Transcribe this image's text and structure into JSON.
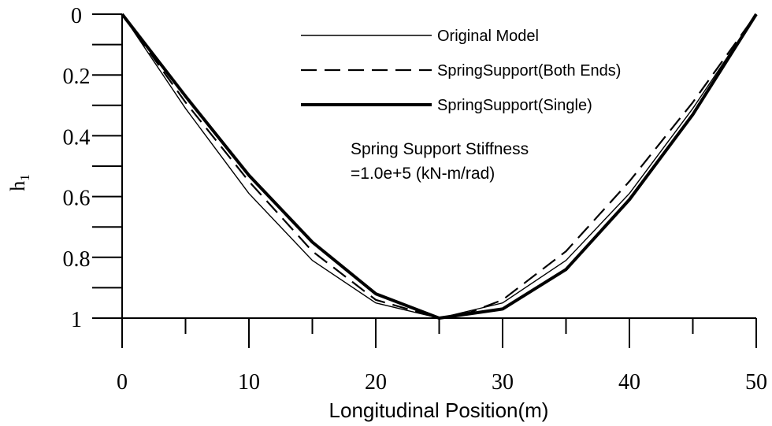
{
  "chart_data": {
    "type": "line",
    "title": "",
    "xlabel": "Longitudinal Position(m)",
    "ylabel": "h",
    "ylabel_subscript": "1",
    "xlim": [
      0,
      50
    ],
    "ylim": [
      0,
      1
    ],
    "y_inverted": true,
    "grid": false,
    "legend_position": "top-right",
    "x_ticks": [
      0,
      10,
      20,
      30,
      40,
      50
    ],
    "x_tick_labels": [
      "0",
      "10",
      "20",
      "30",
      "40",
      "50"
    ],
    "y_ticks": [
      0,
      0.2,
      0.4,
      0.6,
      0.8,
      1
    ],
    "y_tick_labels": [
      "0",
      "0.2",
      "0.4",
      "0.6",
      "0.8",
      "1"
    ],
    "series": [
      {
        "name": "Original Model",
        "style": "thin",
        "x": [
          0,
          5,
          10,
          15,
          20,
          25,
          30,
          35,
          40,
          45,
          50
        ],
        "y": [
          0,
          0.31,
          0.59,
          0.81,
          0.95,
          1.0,
          0.95,
          0.81,
          0.59,
          0.31,
          0
        ]
      },
      {
        "name": "SpringSupport(Both Ends)",
        "style": "dashed",
        "x": [
          0,
          5,
          10,
          15,
          20,
          25,
          27.5,
          30,
          35,
          40,
          45,
          50
        ],
        "y": [
          0,
          0.29,
          0.55,
          0.78,
          0.94,
          1.0,
          0.98,
          0.94,
          0.78,
          0.55,
          0.29,
          0
        ]
      },
      {
        "name": "SpringSupport(Single)",
        "style": "thick",
        "x": [
          0,
          5,
          10,
          15,
          20,
          25,
          30,
          35,
          40,
          45,
          50
        ],
        "y": [
          0,
          0.27,
          0.53,
          0.75,
          0.92,
          1.0,
          0.97,
          0.84,
          0.61,
          0.33,
          0
        ]
      }
    ],
    "annotation": {
      "line1": "Spring Support Stiffness",
      "line2": "=1.0e+5 (kN-m/rad)"
    },
    "colors": {
      "line": "#000000",
      "background": "#ffffff"
    }
  }
}
